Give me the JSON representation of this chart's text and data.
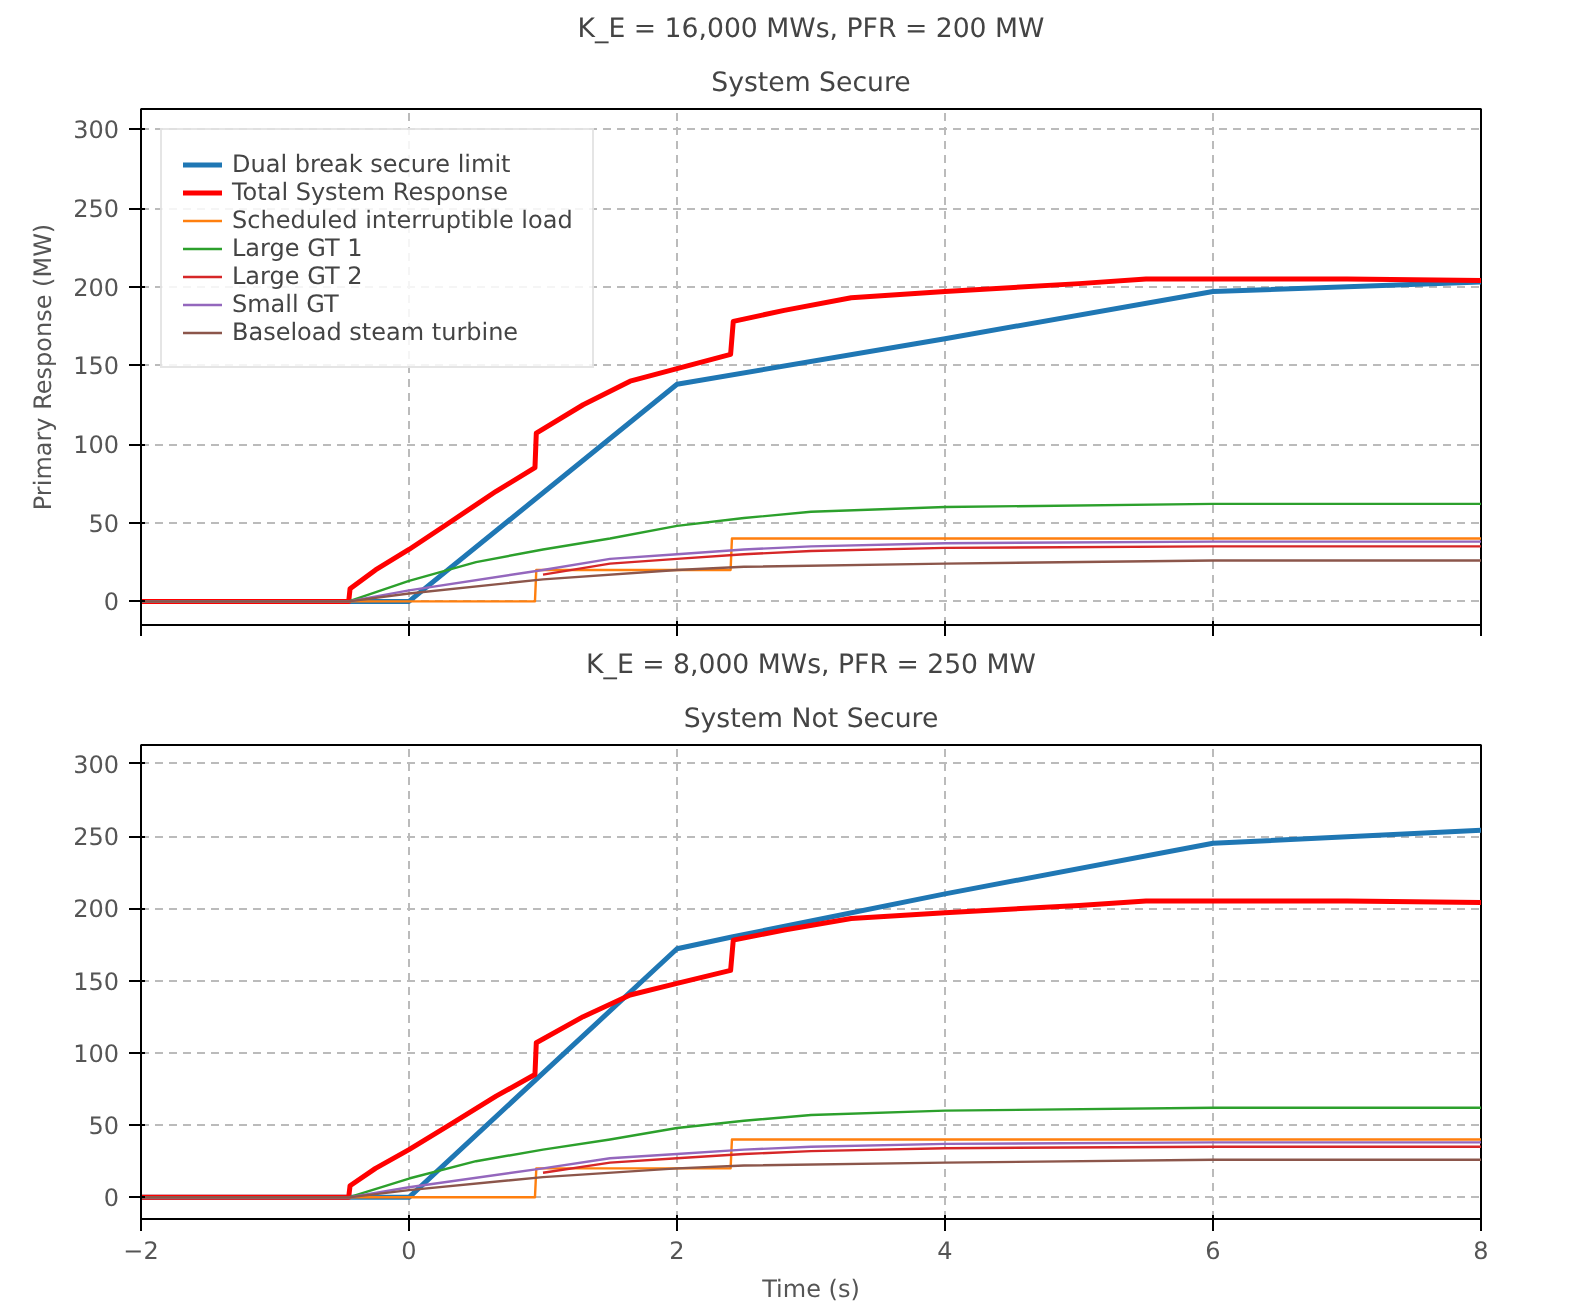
{
  "chart_data": [
    {
      "type": "line",
      "title": "K_E = 16,000 MWs, PFR = 200 MW",
      "subtitle": "System Secure",
      "ylabel": "Primary Response (MW)",
      "xlim": [
        -2,
        8
      ],
      "xticks": [
        -2,
        0,
        2,
        4,
        6,
        8
      ],
      "ylim": [
        -15,
        313
      ],
      "yticks": [
        0,
        50,
        100,
        150,
        200,
        250,
        300
      ],
      "grid": true,
      "legend": "top left",
      "tick_labels": "y",
      "series": [
        {
          "name": "Dual break secure limit",
          "color": "#1f77b4",
          "x": [
            -2,
            0,
            2,
            4,
            6,
            8
          ],
          "values": [
            0,
            0,
            138,
            167,
            197,
            203
          ]
        },
        {
          "name": "Total System Response",
          "color": "#ff0000",
          "x": [
            -2,
            -0.45,
            -0.44,
            -0.25,
            0,
            0.3,
            0.65,
            0.94,
            0.95,
            1.3,
            1.65,
            2,
            2.4,
            2.42,
            2.8,
            3.3,
            4,
            5,
            5.5,
            7,
            8
          ],
          "values": [
            0,
            0,
            8,
            20,
            33,
            50,
            70,
            85,
            107,
            125,
            140,
            148,
            157,
            178,
            185,
            193,
            197,
            202,
            205,
            205,
            204
          ]
        },
        {
          "name": "Scheduled interruptible load",
          "color": "#ff7f0e",
          "x": [
            -2,
            0.94,
            0.95,
            2.4,
            2.41,
            8
          ],
          "values": [
            0,
            0,
            20,
            20,
            40,
            40
          ]
        },
        {
          "name": "Large GT 1",
          "color": "#2ca02c",
          "x": [
            -2,
            -0.45,
            0,
            0.5,
            1,
            1.5,
            2,
            2.5,
            3,
            4,
            6,
            8
          ],
          "values": [
            0,
            0,
            13,
            25,
            33,
            40,
            48,
            53,
            57,
            60,
            62,
            62
          ]
        },
        {
          "name": "Large GT 2",
          "color": "#d62728",
          "x": [
            1,
            1.5,
            2,
            2.5,
            3,
            4,
            6,
            8
          ],
          "values": [
            17,
            24,
            27,
            30,
            32,
            34,
            35,
            35
          ]
        },
        {
          "name": "Small GT",
          "color": "#9467bd",
          "x": [
            -2,
            -0.45,
            0,
            1,
            1.5,
            2,
            2.5,
            3,
            4,
            6,
            8
          ],
          "values": [
            0,
            0,
            7,
            20,
            27,
            30,
            33,
            35,
            37,
            38,
            38
          ]
        },
        {
          "name": "Baseload steam turbine",
          "color": "#8c564b",
          "x": [
            -2,
            -0.45,
            0,
            1,
            2,
            2.5,
            4,
            6,
            8
          ],
          "values": [
            0,
            0,
            5,
            14,
            20,
            22,
            24,
            26,
            26
          ]
        }
      ]
    },
    {
      "type": "line",
      "title": "K_E = 8,000 MWs, PFR = 250 MW",
      "subtitle": "System Not Secure",
      "xlabel": "Time (s)",
      "xlim": [
        -2,
        8
      ],
      "xticks": [
        {
          "value": -2,
          "label": "−2"
        },
        0,
        2,
        4,
        6,
        8
      ],
      "ylim": [
        -15,
        313
      ],
      "yticks": [
        0,
        50,
        100,
        150,
        200,
        250,
        300
      ],
      "grid": true,
      "series": [
        {
          "color": "#1f77b4",
          "x": [
            -2,
            0,
            2,
            2.4,
            4,
            6,
            8
          ],
          "values": [
            0,
            0,
            172,
            180,
            210,
            245,
            254
          ]
        },
        {
          "color": "#ff0000",
          "x": [
            -2,
            -0.45,
            -0.44,
            -0.25,
            0,
            0.3,
            0.65,
            0.94,
            0.95,
            1.3,
            1.65,
            2,
            2.4,
            2.42,
            2.8,
            3.3,
            4,
            5,
            5.5,
            7,
            8
          ],
          "values": [
            0,
            0,
            8,
            20,
            33,
            50,
            70,
            85,
            107,
            125,
            140,
            148,
            157,
            178,
            185,
            193,
            197,
            202,
            205,
            205,
            204
          ]
        },
        {
          "color": "#ff7f0e",
          "x": [
            -2,
            0.94,
            0.95,
            2.4,
            2.41,
            8
          ],
          "values": [
            0,
            0,
            20,
            20,
            40,
            40
          ]
        },
        {
          "color": "#2ca02c",
          "x": [
            -2,
            -0.45,
            0,
            0.5,
            1,
            1.5,
            2,
            2.5,
            3,
            4,
            6,
            8
          ],
          "values": [
            0,
            0,
            13,
            25,
            33,
            40,
            48,
            53,
            57,
            60,
            62,
            62
          ]
        },
        {
          "color": "#d62728",
          "x": [
            1,
            1.5,
            2,
            2.5,
            3,
            4,
            6,
            8
          ],
          "values": [
            17,
            24,
            27,
            30,
            32,
            34,
            35,
            35
          ]
        },
        {
          "color": "#9467bd",
          "x": [
            -2,
            -0.45,
            0,
            1,
            1.5,
            2,
            2.5,
            3,
            4,
            6,
            8
          ],
          "values": [
            0,
            0,
            7,
            20,
            27,
            30,
            33,
            35,
            37,
            38,
            38
          ]
        },
        {
          "color": "#8c564b",
          "x": [
            -2,
            -0.45,
            0,
            1,
            2,
            2.5,
            4,
            6,
            8
          ],
          "values": [
            0,
            0,
            5,
            14,
            20,
            22,
            24,
            26,
            26
          ]
        }
      ]
    }
  ]
}
